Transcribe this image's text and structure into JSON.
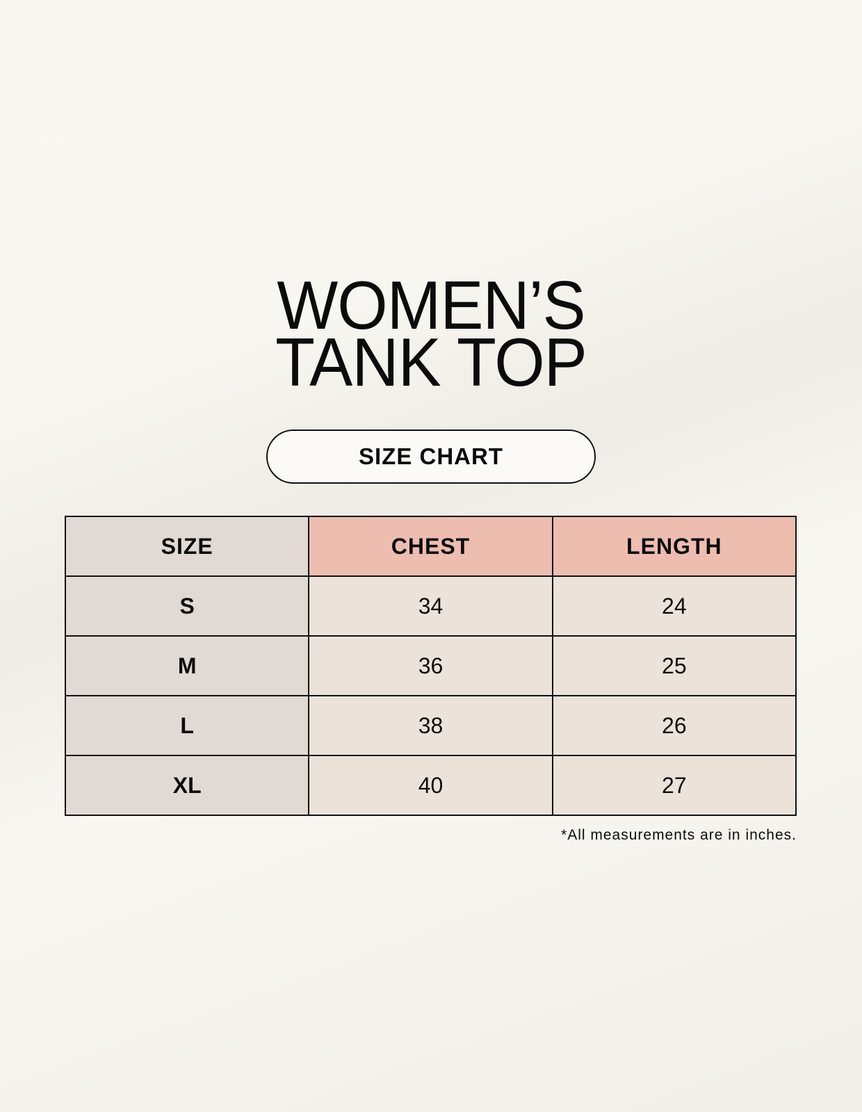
{
  "title": {
    "line1": "WOMEN’S",
    "line2": "TANK TOP"
  },
  "badge": "SIZE CHART",
  "table": {
    "headers": [
      "SIZE",
      "CHEST",
      "LENGTH"
    ],
    "rows": [
      [
        "S",
        "34",
        "24"
      ],
      [
        "M",
        "36",
        "25"
      ],
      [
        "L",
        "38",
        "26"
      ],
      [
        "XL",
        "40",
        "27"
      ]
    ]
  },
  "footnote": "*All measurements are in inches.",
  "colors": {
    "size_column": "#e1d9d3",
    "header_accent": "#edbdb0",
    "cell": "#ebe3d9",
    "background": "#f9f7f1"
  }
}
